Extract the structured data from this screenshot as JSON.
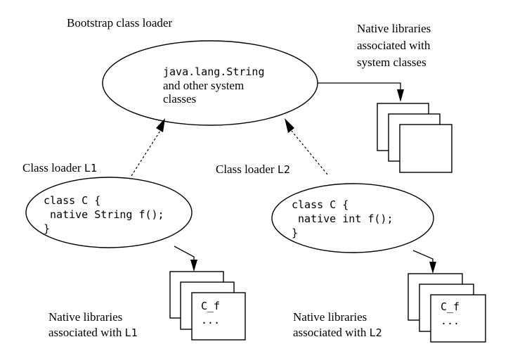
{
  "bootstrap": {
    "title": "Bootstrap class loader",
    "line1": "java.lang.String",
    "line2": "and other system",
    "line3": "classes"
  },
  "system_libs": {
    "line1": "Native libraries",
    "line2": "associated with",
    "line3": "system classes"
  },
  "loader1": {
    "label": "Class loader ",
    "label_id": "L1",
    "line1": "class C {",
    "line2": " native String f();",
    "line3": "}"
  },
  "loader2": {
    "label": "Class loader ",
    "label_id": "L2",
    "line1": "class C {",
    "line2": " native int f();",
    "line3": "}"
  },
  "libs1": {
    "code1": "C_f",
    "code2": "...",
    "line1": "Native libraries",
    "line2": "associated with ",
    "line2_id": "L1"
  },
  "libs2": {
    "code1": "C_f",
    "code2": "...",
    "line1": "Native libraries",
    "line2": "associated with ",
    "line2_id": "L2"
  }
}
